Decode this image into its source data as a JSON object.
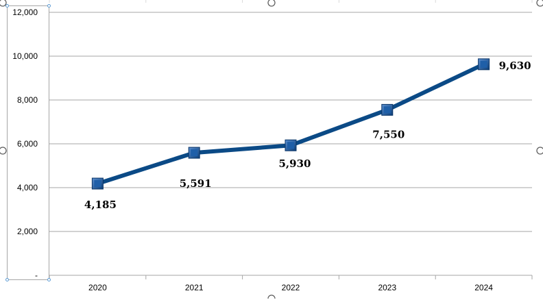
{
  "chart_data": {
    "type": "line",
    "title": "",
    "xlabel": "",
    "ylabel": "",
    "categories": [
      "2020",
      "2021",
      "2022",
      "2023",
      "2024"
    ],
    "series": [
      {
        "values": [
          4185,
          5591,
          5930,
          7550,
          9630
        ],
        "color": "#0b4a86",
        "marker": "square",
        "data_labels": [
          "4,185",
          "5,591",
          "5,930",
          "7,550",
          "9,630"
        ]
      }
    ],
    "ylim": [
      0,
      12000
    ],
    "yticks": [
      0,
      2000,
      4000,
      6000,
      8000,
      10000,
      12000
    ],
    "ytick_labels": [
      "-",
      "2,000",
      "4,000",
      "6,000",
      "8,000",
      "10,000",
      "12,000"
    ],
    "grid": true,
    "legend": "none"
  },
  "colors": {
    "line": "#0b4a86",
    "marker_fill": "#1f5fa8",
    "gridline": "#a6a6a6",
    "selection_handle": "#5b9bd5"
  }
}
